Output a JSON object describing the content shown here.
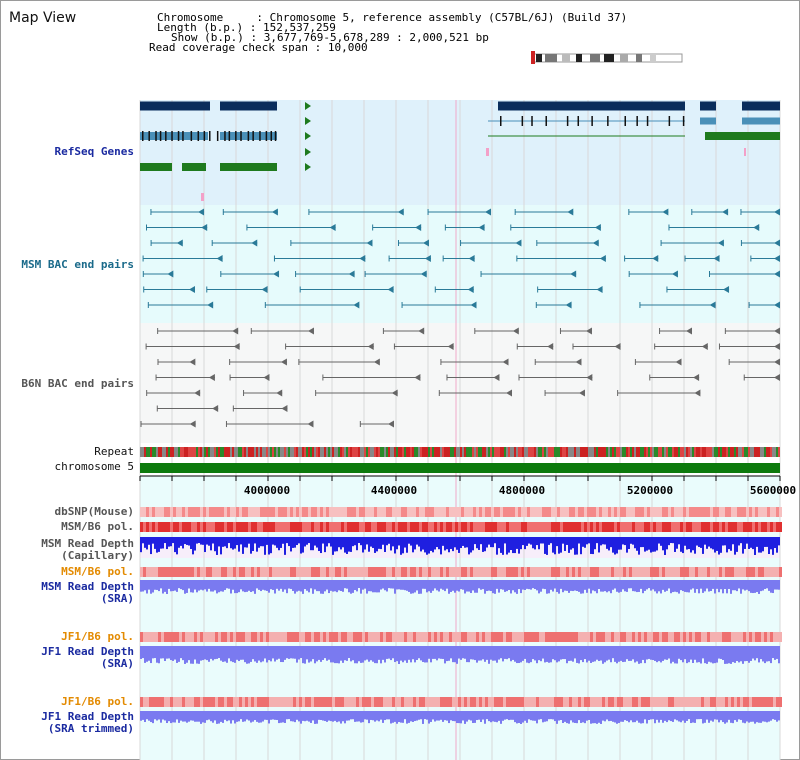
{
  "page": {
    "title": "Map View",
    "info": {
      "chromosome_key": "Chromosome",
      "chromosome_val": "Chromosome 5, reference assembly (C57BL/6J) (Build 37)",
      "length_key": "Length (b.p.)",
      "length_val": "152,537,259",
      "show_key": "Show (b.p.)",
      "show_val": "3,677,769-5,678,289 : 2,000,521 bp",
      "coverage_key": "Read coverage check span",
      "coverage_val": "10,000"
    }
  },
  "tracks": {
    "refseq": "RefSeq Genes",
    "msm_bac": "MSM BAC end pairs",
    "b6n_bac": "B6N BAC end pairs",
    "repeat": "Repeat",
    "chromosome": "chromosome 5",
    "dbsnp": "dbSNP(Mouse)",
    "msm_b6_pol_1": "MSM/B6 pol.",
    "msm_depth_cap_1": "MSM Read Depth",
    "msm_depth_cap_2": "(Capillary)",
    "msm_b6_pol_2": "MSM/B6 pol.",
    "msm_depth_sra_1": "MSM Read Depth",
    "msm_depth_sra_2": "(SRA)",
    "jf1_b6_pol_1": "JF1/B6 pol.",
    "jf1_depth_sra_1": "JF1 Read Depth",
    "jf1_depth_sra_2": "(SRA)",
    "jf1_b6_pol_2": "JF1/B6 pol.",
    "jf1_depth_trim_1": "JF1 Read Depth",
    "jf1_depth_trim_2": "(SRA trimmed)"
  },
  "axis": {
    "ticks": [
      "4000000",
      "4400000",
      "4800000",
      "5200000",
      "5600000"
    ]
  },
  "colors": {
    "refseq_bg": "#dff1fb",
    "msm_bg": "#e6fbfc",
    "b6n_bg": "#f6f7f7",
    "lower_bg": "#eafcfc",
    "gene_dark": "#0a2d5c",
    "gene_mid": "#4a90b8",
    "gene_green": "#1e7a1e",
    "bac_teal": "#2a7a98",
    "bac_gray": "#666666",
    "chrom_green": "#0d7a0d",
    "depth_blue": "#1f1fe0",
    "depth_light": "#7a7af0"
  }
}
